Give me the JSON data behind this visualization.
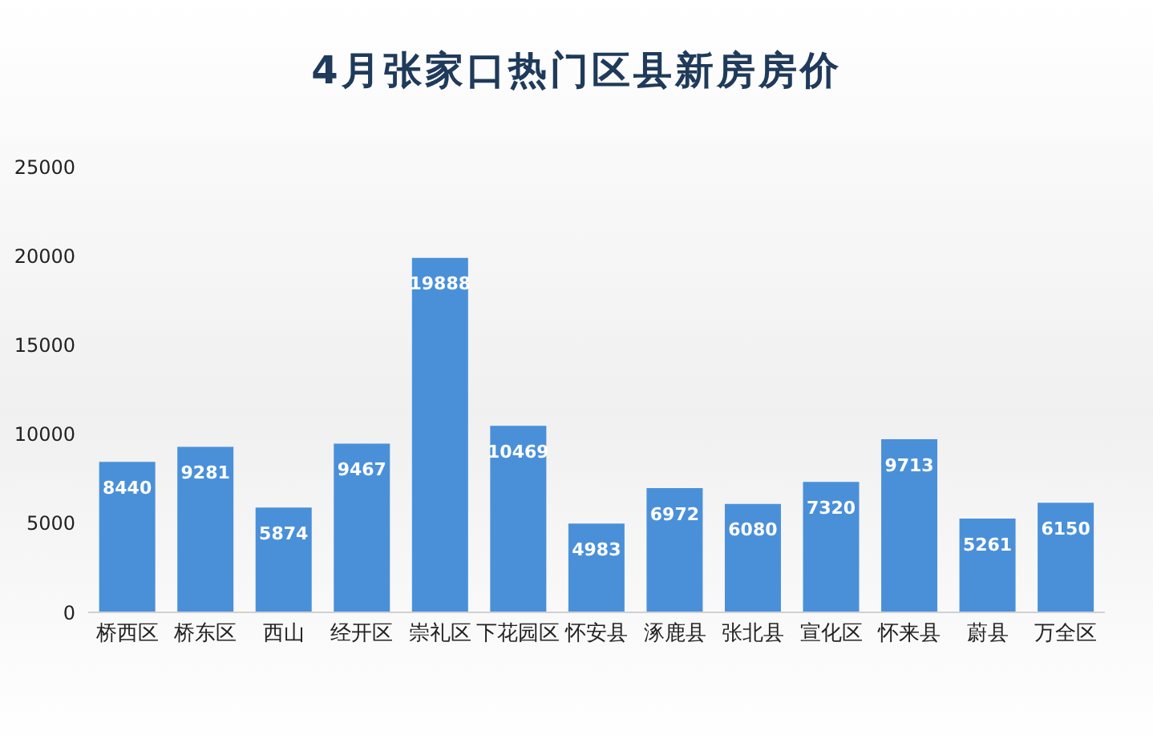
{
  "chart_data": {
    "type": "bar",
    "title": "4月张家口热门区县新房房价",
    "categories": [
      "桥西区",
      "桥东区",
      "西山",
      "经开区",
      "崇礼区",
      "下花园区",
      "怀安县",
      "涿鹿县",
      "张北县",
      "宣化区",
      "怀来县",
      "蔚县",
      "万全区"
    ],
    "values": [
      8440,
      9281,
      5874,
      9467,
      19888,
      10469,
      4983,
      6972,
      6080,
      7320,
      9713,
      5261,
      6150
    ],
    "color": "#4a90d9",
    "ylim": [
      0,
      25000
    ],
    "yticks": [
      0,
      5000,
      10000,
      15000,
      20000,
      25000
    ],
    "grid": false,
    "data_labels": true,
    "legend": false
  }
}
